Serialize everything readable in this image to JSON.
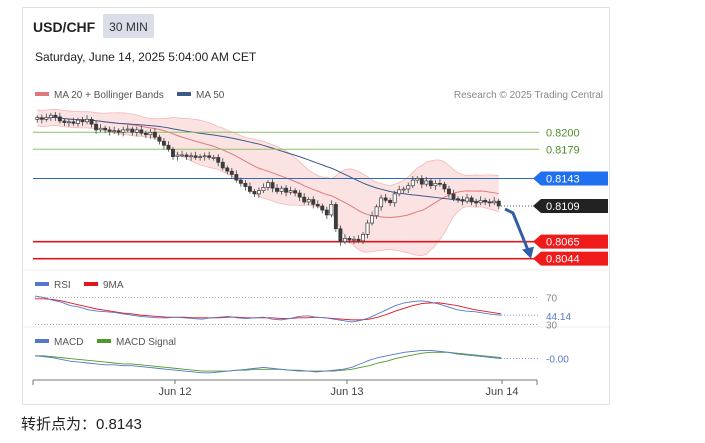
{
  "header": {
    "symbol": "USD/CHF",
    "timeframe": "30 MIN",
    "datetime": "Saturday, June 14, 2025 5:04:00 AM CET",
    "copyright": "Research © 2025 Trading Central"
  },
  "legend": {
    "ma20": "MA 20 + Bollinger Bands",
    "ma50": "MA 50",
    "rsi": "RSI",
    "rsi_ma": "9MA",
    "macd": "MACD",
    "macd_signal": "MACD Signal"
  },
  "colors": {
    "candle_up": "#3b3b3b",
    "candle_down": "#3b3b3b",
    "ma20": "#e07a7a",
    "bb_fill": "#fbdada",
    "ma50": "#3c5a8c",
    "resistance": "#8cc068",
    "pivot": "#2f6bb8",
    "support": "#e0161e",
    "last_price": "#222222",
    "rsi": "#5577cc",
    "rsi_ma": "#e0161e",
    "macd": "#5577cc",
    "macd_signal": "#4f9a2a",
    "arrow": "#2f5fa8"
  },
  "footer": {
    "label": "转折点为：",
    "value": "0.8143"
  },
  "chart_data": [
    {
      "type": "candlestick",
      "panel": "price",
      "x_labels": [
        "Jun 12",
        "Jun 13",
        "Jun 14"
      ],
      "ylim": [
        0.803,
        0.823
      ],
      "close": [
        0.8218,
        0.8216,
        0.8218,
        0.8221,
        0.8219,
        0.8214,
        0.8212,
        0.8213,
        0.8211,
        0.8215,
        0.8213,
        0.8216,
        0.821,
        0.8203,
        0.8205,
        0.8203,
        0.8201,
        0.8202,
        0.82,
        0.8203,
        0.8204,
        0.82,
        0.8203,
        0.8199,
        0.8197,
        0.82,
        0.8194,
        0.8189,
        0.8184,
        0.8179,
        0.817,
        0.8172,
        0.8172,
        0.817,
        0.8171,
        0.8169,
        0.817,
        0.8171,
        0.8169,
        0.8169,
        0.8163,
        0.8156,
        0.8152,
        0.8148,
        0.8141,
        0.8137,
        0.8133,
        0.8127,
        0.8124,
        0.8128,
        0.8132,
        0.8138,
        0.8131,
        0.8127,
        0.8131,
        0.8126,
        0.8128,
        0.8125,
        0.812,
        0.8114,
        0.8117,
        0.8111,
        0.8109,
        0.8104,
        0.8098,
        0.8111,
        0.8081,
        0.8065,
        0.8069,
        0.8067,
        0.8068,
        0.8066,
        0.8074,
        0.8088,
        0.8097,
        0.8108,
        0.8119,
        0.8116,
        0.8113,
        0.8124,
        0.8129,
        0.813,
        0.8134,
        0.8141,
        0.8143,
        0.8136,
        0.814,
        0.8134,
        0.8137,
        0.8136,
        0.813,
        0.8124,
        0.8118,
        0.8117,
        0.8115,
        0.8119,
        0.8114,
        0.8113,
        0.8116,
        0.8114,
        0.8113,
        0.8115,
        0.8109
      ],
      "levels": [
        {
          "value": 0.82,
          "label": "0.8200",
          "kind": "resistance"
        },
        {
          "value": 0.8179,
          "label": "0.8179",
          "kind": "resistance"
        },
        {
          "value": 0.8143,
          "label": "0.8143",
          "kind": "pivot"
        },
        {
          "value": 0.8109,
          "label": "0.8109",
          "kind": "last"
        },
        {
          "value": 0.8065,
          "label": "0.8065",
          "kind": "support"
        },
        {
          "value": 0.8044,
          "label": "0.8044",
          "kind": "support"
        }
      ],
      "forecast_arrow": {
        "from": 0.8109,
        "to": 0.8044,
        "direction": "down"
      }
    },
    {
      "type": "line",
      "panel": "rsi",
      "ylim": [
        28,
        78
      ],
      "guides": [
        70,
        30
      ],
      "guide_labels": [
        "70",
        "30"
      ],
      "last_value_label": "44.14",
      "series": [
        {
          "name": "RSI",
          "values": [
            72,
            70,
            66,
            63,
            58,
            56,
            52,
            50,
            49,
            48,
            46,
            44,
            42,
            41,
            40,
            40,
            41,
            40,
            39,
            38,
            40,
            41,
            42,
            40,
            39,
            40,
            41,
            38,
            37,
            39,
            42,
            43,
            41,
            40,
            38,
            36,
            34,
            36,
            40,
            46,
            52,
            58,
            62,
            64,
            65,
            63,
            60,
            56,
            52,
            50,
            49,
            47,
            45,
            44
          ]
        },
        {
          "name": "9MA",
          "values": [
            68,
            68,
            67,
            65,
            62,
            59,
            56,
            53,
            51,
            49,
            47,
            46,
            44,
            43,
            42,
            41,
            41,
            41,
            40,
            40,
            40,
            40,
            41,
            41,
            40,
            40,
            40,
            40,
            39,
            39,
            40,
            40,
            41,
            40,
            39,
            38,
            37,
            37,
            38,
            41,
            45,
            50,
            54,
            58,
            61,
            62,
            62,
            60,
            58,
            55,
            52,
            50,
            48,
            46
          ]
        }
      ]
    },
    {
      "type": "line",
      "panel": "macd",
      "ylim": [
        -0.0022,
        0.0016
      ],
      "last_value_label": "-0.00",
      "series": [
        {
          "name": "MACD",
          "values": [
            0.0005,
            0.0004,
            0.0003,
            0.0001,
            -0.0001,
            -0.0002,
            -0.0003,
            -0.0004,
            -0.0005,
            -0.0005,
            -0.0006,
            -0.0006,
            -0.0007,
            -0.0008,
            -0.0009,
            -0.001,
            -0.0011,
            -0.0012,
            -0.0013,
            -0.0014,
            -0.0014,
            -0.0013,
            -0.0012,
            -0.0011,
            -0.001,
            -0.0009,
            -0.0008,
            -0.0009,
            -0.001,
            -0.0011,
            -0.0012,
            -0.0012,
            -0.0013,
            -0.0012,
            -0.0011,
            -0.001,
            -0.0008,
            -0.0004,
            0.0,
            0.0003,
            0.0005,
            0.0007,
            0.0009,
            0.001,
            0.0011,
            0.0011,
            0.001,
            0.0009,
            0.0007,
            0.0006,
            0.0005,
            0.0004,
            0.0003,
            0.0002
          ]
        },
        {
          "name": "MACD Signal",
          "values": [
            0.0005,
            0.0005,
            0.0004,
            0.0003,
            0.0002,
            0.0001,
            0.0,
            -0.0001,
            -0.0002,
            -0.0003,
            -0.0004,
            -0.0004,
            -0.0005,
            -0.0006,
            -0.0007,
            -0.0008,
            -0.0009,
            -0.001,
            -0.0011,
            -0.0012,
            -0.0012,
            -0.0012,
            -0.0012,
            -0.0011,
            -0.0011,
            -0.001,
            -0.001,
            -0.001,
            -0.001,
            -0.0011,
            -0.0011,
            -0.0012,
            -0.0012,
            -0.0012,
            -0.0012,
            -0.0011,
            -0.001,
            -0.0008,
            -0.0006,
            -0.0003,
            -0.0001,
            0.0002,
            0.0004,
            0.0006,
            0.0008,
            0.0009,
            0.0009,
            0.0009,
            0.0008,
            0.0007,
            0.0006,
            0.0005,
            0.0004,
            0.0003
          ]
        }
      ]
    }
  ]
}
